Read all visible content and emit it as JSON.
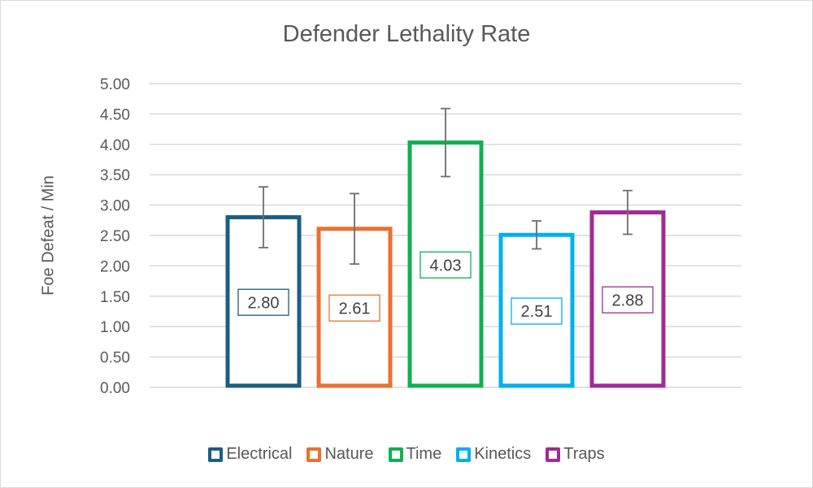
{
  "chart_data": {
    "type": "bar",
    "title": "Defender Lethality Rate",
    "xlabel": "",
    "ylabel": "Foe Defeat / Min",
    "ylim": [
      0,
      5
    ],
    "yticks": [
      "0.00",
      "0.50",
      "1.00",
      "1.50",
      "2.00",
      "2.50",
      "3.00",
      "3.50",
      "4.00",
      "4.50",
      "5.00"
    ],
    "grid": true,
    "legend_position": "bottom",
    "categories": [
      "Electrical",
      "Nature",
      "Time",
      "Kinetics",
      "Traps"
    ],
    "values": [
      2.8,
      2.61,
      4.03,
      2.51,
      2.88
    ],
    "data_labels": [
      "2.80",
      "2.61",
      "4.03",
      "2.51",
      "2.88"
    ],
    "error_bars": [
      0.5,
      0.58,
      0.56,
      0.23,
      0.36
    ],
    "colors": [
      "#1B5E84",
      "#E97132",
      "#10B050",
      "#00B0F0",
      "#A02B93"
    ]
  }
}
